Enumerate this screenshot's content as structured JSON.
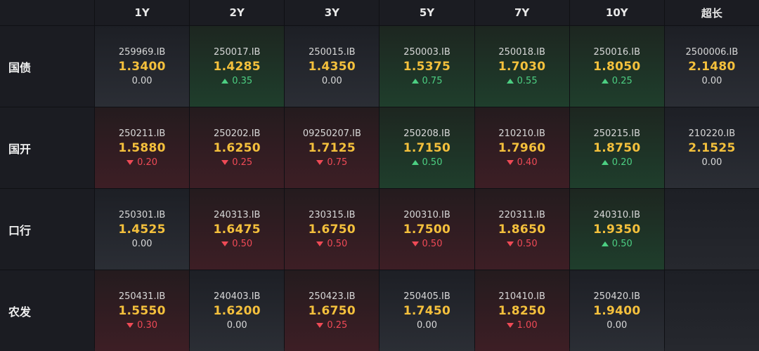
{
  "columns": [
    "1Y",
    "2Y",
    "3Y",
    "5Y",
    "7Y",
    "10Y",
    "超长"
  ],
  "rows": [
    {
      "label": "国债",
      "cells": [
        {
          "code": "259969.IB",
          "yield": "1.3400",
          "change": "0.00",
          "dir": "flat"
        },
        {
          "code": "250017.IB",
          "yield": "1.4285",
          "change": "0.35",
          "dir": "up"
        },
        {
          "code": "250015.IB",
          "yield": "1.4350",
          "change": "0.00",
          "dir": "flat"
        },
        {
          "code": "250003.IB",
          "yield": "1.5375",
          "change": "0.75",
          "dir": "up"
        },
        {
          "code": "250018.IB",
          "yield": "1.7030",
          "change": "0.55",
          "dir": "up"
        },
        {
          "code": "250016.IB",
          "yield": "1.8050",
          "change": "0.25",
          "dir": "up"
        },
        {
          "code": "2500006.IB",
          "yield": "2.1480",
          "change": "0.00",
          "dir": "flat"
        }
      ]
    },
    {
      "label": "国开",
      "cells": [
        {
          "code": "250211.IB",
          "yield": "1.5880",
          "change": "0.20",
          "dir": "down"
        },
        {
          "code": "250202.IB",
          "yield": "1.6250",
          "change": "0.25",
          "dir": "down"
        },
        {
          "code": "09250207.IB",
          "yield": "1.7125",
          "change": "0.75",
          "dir": "down"
        },
        {
          "code": "250208.IB",
          "yield": "1.7150",
          "change": "0.50",
          "dir": "up"
        },
        {
          "code": "210210.IB",
          "yield": "1.7960",
          "change": "0.40",
          "dir": "down"
        },
        {
          "code": "250215.IB",
          "yield": "1.8750",
          "change": "0.20",
          "dir": "up"
        },
        {
          "code": "210220.IB",
          "yield": "2.1525",
          "change": "0.00",
          "dir": "flat"
        }
      ]
    },
    {
      "label": "口行",
      "cells": [
        {
          "code": "250301.IB",
          "yield": "1.4525",
          "change": "0.00",
          "dir": "flat"
        },
        {
          "code": "240313.IB",
          "yield": "1.6475",
          "change": "0.50",
          "dir": "down"
        },
        {
          "code": "230315.IB",
          "yield": "1.6750",
          "change": "0.50",
          "dir": "down"
        },
        {
          "code": "200310.IB",
          "yield": "1.7500",
          "change": "0.50",
          "dir": "down"
        },
        {
          "code": "220311.IB",
          "yield": "1.8650",
          "change": "0.50",
          "dir": "down"
        },
        {
          "code": "240310.IB",
          "yield": "1.9350",
          "change": "0.50",
          "dir": "up"
        },
        null
      ]
    },
    {
      "label": "农发",
      "cells": [
        {
          "code": "250431.IB",
          "yield": "1.5550",
          "change": "0.30",
          "dir": "down"
        },
        {
          "code": "240403.IB",
          "yield": "1.6200",
          "change": "0.00",
          "dir": "flat"
        },
        {
          "code": "250423.IB",
          "yield": "1.6750",
          "change": "0.25",
          "dir": "down"
        },
        {
          "code": "250405.IB",
          "yield": "1.7450",
          "change": "0.00",
          "dir": "flat"
        },
        {
          "code": "210410.IB",
          "yield": "1.8250",
          "change": "1.00",
          "dir": "down"
        },
        {
          "code": "250420.IB",
          "yield": "1.9400",
          "change": "0.00",
          "dir": "flat"
        },
        null
      ]
    }
  ]
}
